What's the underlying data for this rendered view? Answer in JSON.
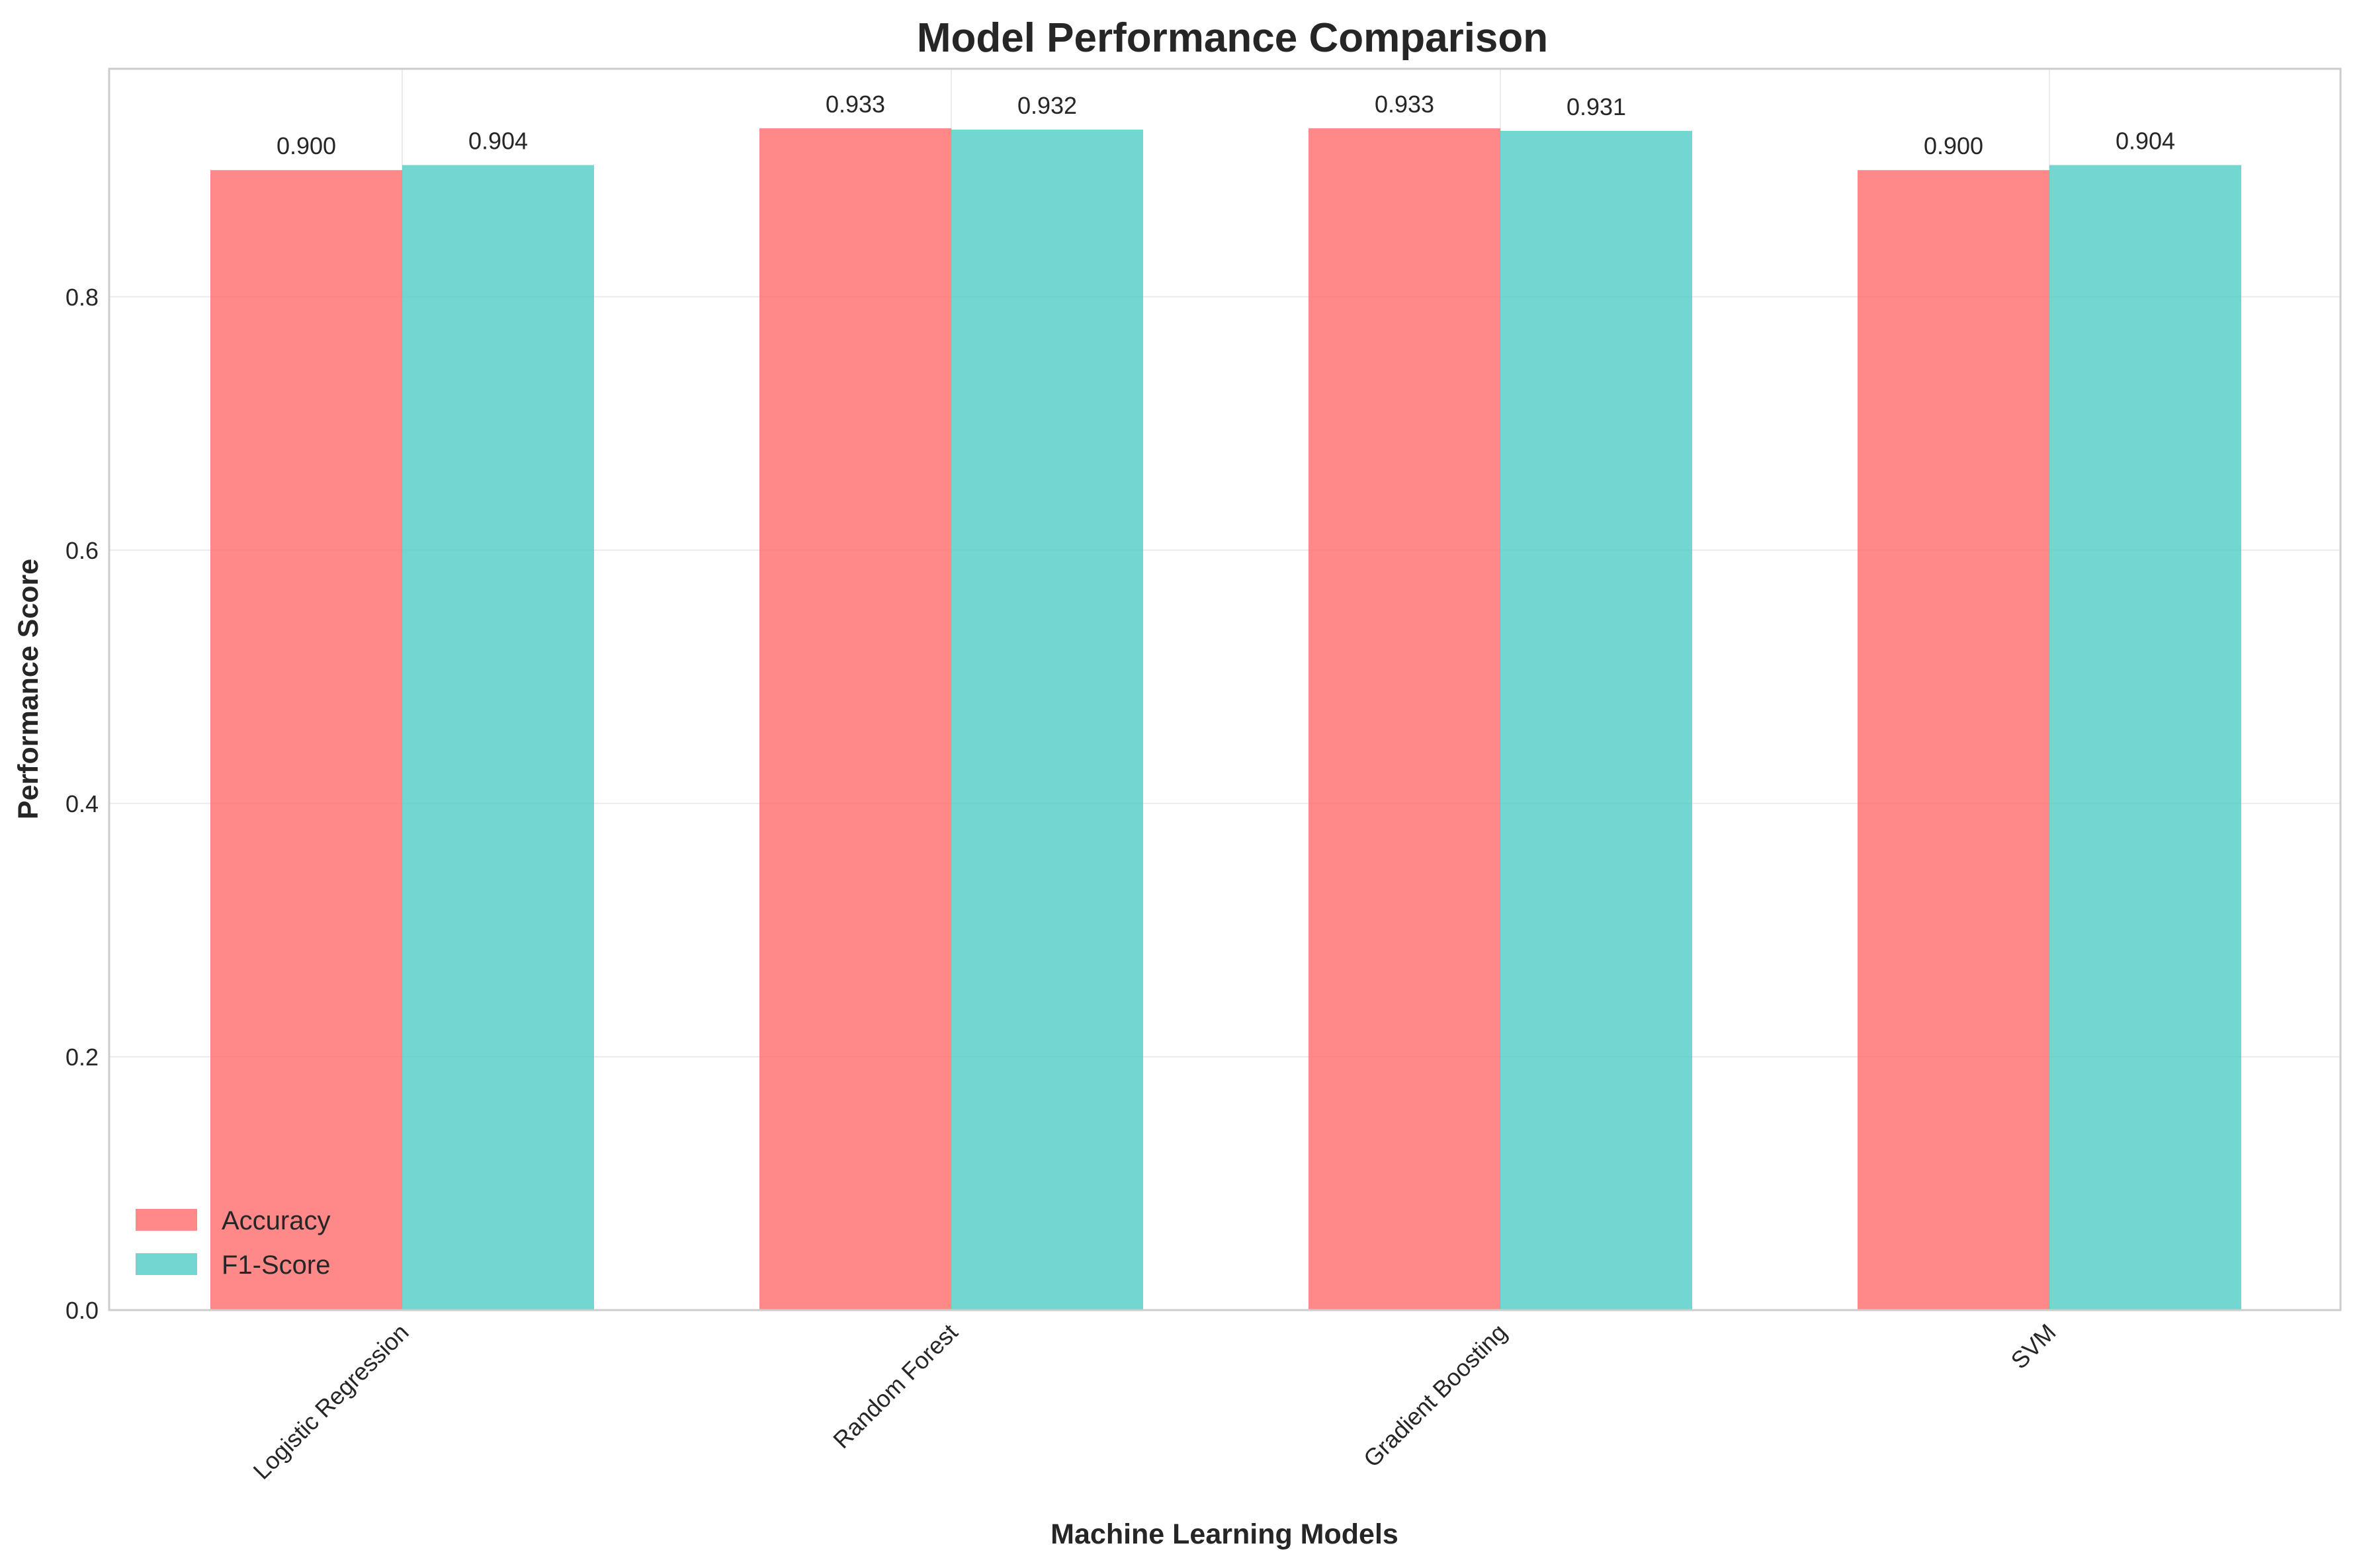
{
  "chart_data": {
    "type": "bar",
    "title": "Model Performance Comparison",
    "xlabel": "Machine Learning Models",
    "ylabel": "Performance Score",
    "categories": [
      "Logistic Regression",
      "Random Forest",
      "Gradient Boosting",
      "SVM"
    ],
    "series": [
      {
        "name": "Accuracy",
        "color": "#ff6b6b",
        "values": [
          0.9,
          0.933,
          0.933,
          0.9
        ],
        "labels": [
          "0.900",
          "0.933",
          "0.933",
          "0.900"
        ]
      },
      {
        "name": "F1-Score",
        "color": "#4ecdc4",
        "values": [
          0.904,
          0.932,
          0.931,
          0.904
        ],
        "labels": [
          "0.904",
          "0.932",
          "0.931",
          "0.904"
        ]
      }
    ],
    "ylim": [
      0,
      0.98
    ],
    "yticks": [
      0.0,
      0.2,
      0.4,
      0.6,
      0.8
    ],
    "ytick_labels": [
      "0.0",
      "0.2",
      "0.4",
      "0.6",
      "0.8"
    ],
    "grid": true,
    "legend_position": "lower-left",
    "bar_opacity": 0.8
  }
}
